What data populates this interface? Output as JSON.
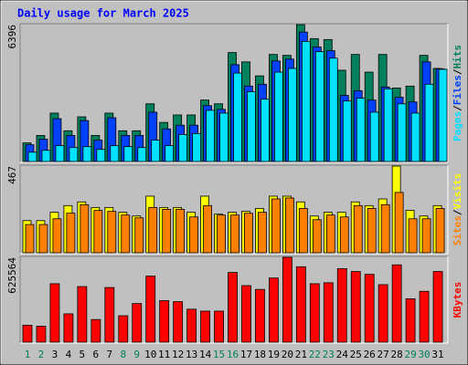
{
  "chart_data": [
    {
      "type": "bar",
      "title": "Daily usage for March 2025",
      "ylim": [
        0,
        6396
      ],
      "yticks": [
        6396
      ],
      "legend_separator": "/",
      "series": [
        {
          "name": "Hits",
          "color": "#00805c",
          "values": [
            870,
            1218,
            2262,
            1436,
            2088,
            1218,
            2262,
            1436,
            1436,
            2697,
            1827,
            2175,
            2175,
            2871,
            2697,
            5090,
            4655,
            4002,
            5003,
            4960,
            6396,
            5743,
            5699,
            4264,
            5003,
            4177,
            5003,
            3437,
            3524,
            4960,
            4350
          ]
        },
        {
          "name": "Files",
          "color": "#0040ff",
          "values": [
            783,
            1044,
            2001,
            1218,
            1914,
            1000,
            2045,
            1218,
            1218,
            2306,
            1523,
            1697,
            1697,
            2610,
            2436,
            4525,
            3524,
            3611,
            4699,
            4786,
            6048,
            5351,
            5177,
            3089,
            3307,
            2871,
            3481,
            3002,
            2784,
            4655,
            4330
          ]
        },
        {
          "name": "Pages",
          "color": "#00e0ff",
          "values": [
            435,
            522,
            740,
            653,
            696,
            566,
            740,
            696,
            653,
            1000,
            740,
            1262,
            1305,
            2393,
            2262,
            4133,
            3263,
            2915,
            4177,
            4351,
            5613,
            5134,
            4829,
            2828,
            2958,
            2306,
            3394,
            2697,
            2262,
            3611,
            4307
          ]
        }
      ]
    },
    {
      "type": "bar",
      "ylim": [
        0,
        467
      ],
      "yticks": [
        467
      ],
      "legend_separator": "/",
      "series": [
        {
          "name": "Visits",
          "color": "#ffff00",
          "values": [
            173,
            173,
            218,
            254,
            274,
            244,
            244,
            218,
            198,
            305,
            244,
            244,
            218,
            305,
            208,
            218,
            223,
            239,
            305,
            305,
            274,
            198,
            218,
            218,
            274,
            254,
            290,
            467,
            229,
            198,
            254
          ]
        },
        {
          "name": "Sites",
          "color": "#ff8000",
          "values": [
            152,
            152,
            183,
            213,
            259,
            228,
            223,
            203,
            188,
            244,
            234,
            234,
            193,
            254,
            203,
            203,
            213,
            218,
            290,
            295,
            239,
            178,
            203,
            193,
            254,
            239,
            259,
            325,
            183,
            183,
            239
          ]
        }
      ]
    },
    {
      "type": "bar",
      "ylim": [
        0,
        625564
      ],
      "yticks": [
        625564
      ],
      "legend_separator": "/",
      "categories": [
        "1",
        "2",
        "3",
        "4",
        "5",
        "6",
        "7",
        "8",
        "9",
        "10",
        "11",
        "12",
        "13",
        "14",
        "15",
        "16",
        "17",
        "18",
        "19",
        "20",
        "21",
        "22",
        "23",
        "24",
        "25",
        "26",
        "27",
        "28",
        "29",
        "30",
        "31"
      ],
      "category_colors": [
        "#00805c",
        "#00805c",
        "#000000",
        "#000000",
        "#000000",
        "#000000",
        "#000000",
        "#00805c",
        "#00805c",
        "#000000",
        "#000000",
        "#000000",
        "#000000",
        "#000000",
        "#00805c",
        "#00805c",
        "#000000",
        "#000000",
        "#000000",
        "#000000",
        "#000000",
        "#00805c",
        "#00805c",
        "#000000",
        "#000000",
        "#000000",
        "#000000",
        "#000000",
        "#00805c",
        "#00805c",
        "#000000"
      ],
      "series": [
        {
          "name": "KBytes",
          "color": "#ff0000",
          "values": [
            125000,
            118000,
            431000,
            209000,
            410000,
            167000,
            403000,
            195000,
            285000,
            487000,
            306000,
            299000,
            243000,
            229000,
            229000,
            514000,
            417000,
            389000,
            473000,
            625564,
            556000,
            431000,
            438000,
            542000,
            521000,
            500000,
            424000,
            570000,
            320000,
            375000,
            521000
          ]
        }
      ]
    }
  ]
}
